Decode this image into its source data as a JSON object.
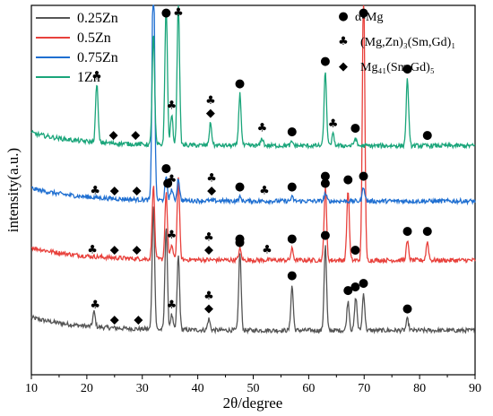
{
  "chart_data": {
    "type": "line",
    "xlabel": "2θ/degree",
    "ylabel": "intensity(a.u.)",
    "xlim": [
      10,
      90
    ],
    "xticks": [
      10,
      20,
      30,
      40,
      50,
      60,
      70,
      80,
      90
    ],
    "y_ticks_shown": false,
    "grid": false,
    "legend_position": "top-left",
    "phase_legend_position": "top-right",
    "series": [
      {
        "name": "0.25Zn",
        "color": "#555555",
        "baseline": 0.12,
        "peaks": [
          [
            21.3,
            0.04
          ],
          [
            32.0,
            0.34
          ],
          [
            34.3,
            0.28
          ],
          [
            35.3,
            0.04
          ],
          [
            36.5,
            0.2
          ],
          [
            42.0,
            0.03
          ],
          [
            47.6,
            0.21
          ],
          [
            57.0,
            0.12
          ],
          [
            63.0,
            0.23
          ],
          [
            67.1,
            0.08
          ],
          [
            68.5,
            0.09
          ],
          [
            69.9,
            0.1
          ],
          [
            77.8,
            0.03
          ]
        ]
      },
      {
        "name": "0.5Zn",
        "color": "#e8413c",
        "baseline": 0.31,
        "peaks": [
          [
            32.0,
            0.2
          ],
          [
            34.3,
            0.18
          ],
          [
            35.3,
            0.04
          ],
          [
            36.5,
            0.22
          ],
          [
            47.6,
            0.03
          ],
          [
            57.0,
            0.03
          ],
          [
            63.0,
            0.2
          ],
          [
            67.1,
            0.19
          ],
          [
            69.9,
            0.75
          ],
          [
            77.8,
            0.05
          ],
          [
            81.4,
            0.05
          ]
        ]
      },
      {
        "name": "0.75Zn",
        "color": "#1f6fd1",
        "baseline": 0.47,
        "peaks": [
          [
            32.0,
            0.68
          ],
          [
            34.3,
            0.06
          ],
          [
            35.3,
            0.03
          ],
          [
            36.5,
            0.06
          ],
          [
            47.6,
            0.01
          ],
          [
            57.0,
            0.01
          ],
          [
            63.0,
            0.02
          ],
          [
            69.9,
            0.04
          ]
        ]
      },
      {
        "name": "1Zn",
        "color": "#1aa57a",
        "baseline": 0.62,
        "peaks": [
          [
            21.8,
            0.16
          ],
          [
            32.0,
            0.3
          ],
          [
            34.3,
            0.38
          ],
          [
            35.3,
            0.08
          ],
          [
            36.5,
            0.39
          ],
          [
            42.3,
            0.06
          ],
          [
            47.6,
            0.14
          ],
          [
            51.6,
            0.02
          ],
          [
            57.0,
            0.01
          ],
          [
            63.0,
            0.2
          ],
          [
            64.4,
            0.03
          ],
          [
            68.4,
            0.02
          ],
          [
            77.8,
            0.18
          ]
        ]
      }
    ],
    "phase_legend": [
      {
        "symbol": "●",
        "label": "α-Mg"
      },
      {
        "symbol": "♣",
        "label": "(Mg,Zn)₃(Sm,Gd)₁"
      },
      {
        "symbol": "◆",
        "label": "Mg₄₁(Sm,Gd)₅"
      }
    ],
    "annotations": [
      {
        "series": "0.25Zn",
        "markers": [
          [
            21.5,
            "♣"
          ],
          [
            25.0,
            "◆"
          ],
          [
            29.3,
            "◆"
          ],
          [
            35.3,
            "♣"
          ],
          [
            42.0,
            "◆"
          ],
          [
            42.0,
            "♣"
          ],
          [
            47.6,
            "●"
          ],
          [
            57.0,
            "●"
          ],
          [
            63.0,
            "●"
          ],
          [
            67.1,
            "●"
          ],
          [
            68.4,
            "●"
          ],
          [
            69.9,
            "●"
          ],
          [
            77.8,
            "●"
          ]
        ]
      },
      {
        "series": "0.5Zn",
        "markers": [
          [
            21.0,
            "♣"
          ],
          [
            25.0,
            "◆"
          ],
          [
            29.0,
            "◆"
          ],
          [
            34.6,
            "●"
          ],
          [
            35.3,
            "♣"
          ],
          [
            42.0,
            "◆"
          ],
          [
            42.0,
            "♣"
          ],
          [
            47.6,
            "●"
          ],
          [
            52.5,
            "♣"
          ],
          [
            57.0,
            "●"
          ],
          [
            63.0,
            "●"
          ],
          [
            67.1,
            "●"
          ],
          [
            68.4,
            "●"
          ],
          [
            69.9,
            "●"
          ],
          [
            77.8,
            "●"
          ],
          [
            81.4,
            "●"
          ]
        ]
      },
      {
        "series": "0.75Zn",
        "markers": [
          [
            21.5,
            "♣"
          ],
          [
            25.0,
            "◆"
          ],
          [
            29.0,
            "◆"
          ],
          [
            34.3,
            "●"
          ],
          [
            35.3,
            "♣"
          ],
          [
            42.5,
            "◆"
          ],
          [
            42.5,
            "♣"
          ],
          [
            47.6,
            "●"
          ],
          [
            52.0,
            "♣"
          ],
          [
            57.0,
            "●"
          ],
          [
            63.0,
            "●"
          ],
          [
            69.9,
            "●"
          ]
        ]
      },
      {
        "series": "1Zn",
        "markers": [
          [
            21.8,
            "♣"
          ],
          [
            24.8,
            "◆"
          ],
          [
            28.8,
            "◆"
          ],
          [
            34.3,
            "●"
          ],
          [
            35.3,
            "♣"
          ],
          [
            36.5,
            "♣"
          ],
          [
            42.3,
            "◆"
          ],
          [
            42.3,
            "♣"
          ],
          [
            47.6,
            "●"
          ],
          [
            51.6,
            "♣"
          ],
          [
            57.0,
            "●"
          ],
          [
            63.0,
            "●"
          ],
          [
            64.4,
            "♣"
          ],
          [
            68.4,
            "●"
          ],
          [
            77.8,
            "●"
          ],
          [
            81.4,
            "●"
          ]
        ]
      }
    ]
  }
}
